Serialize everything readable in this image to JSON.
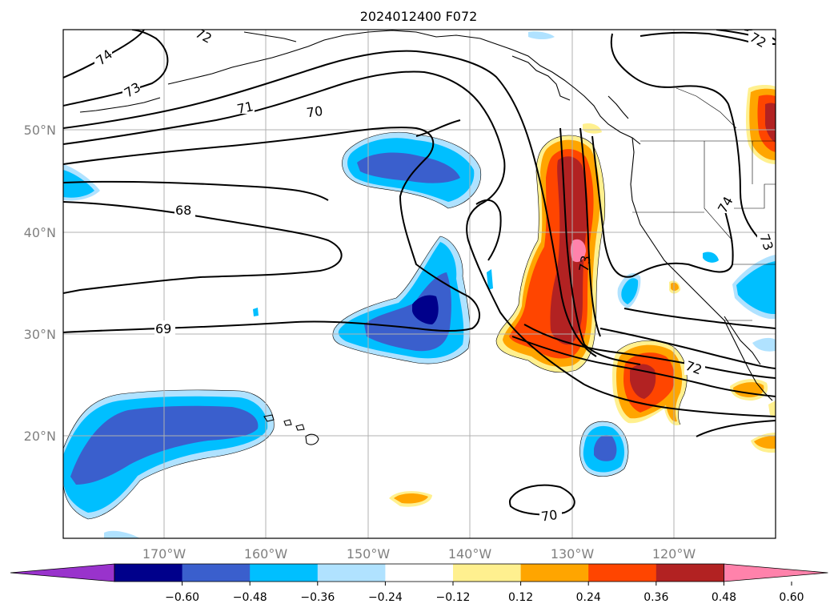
{
  "title": "2024012400 F072",
  "lat_labels": [
    "50°N",
    "40°N",
    "30°N",
    "20°N"
  ],
  "lon_labels": [
    "170°W",
    "160°W",
    "150°W",
    "140°W",
    "130°W",
    "120°W"
  ],
  "colorbar": {
    "colors": [
      "#9933cc",
      "#00008b",
      "#3a5fcd",
      "#00bfff",
      "#b0e2ff",
      "#ffffff",
      "#fff08f",
      "#ffa500",
      "#ff4500",
      "#b22222",
      "#ff82ab"
    ],
    "tick_labels": [
      "−0.60",
      "−0.48",
      "−0.36",
      "−0.24",
      "−0.12",
      "0.12",
      "0.24",
      "0.36",
      "0.48",
      "0.60"
    ]
  },
  "contour_labels": [
    {
      "text": "74",
      "id": "74-nw"
    },
    {
      "text": "72",
      "id": "72-n"
    },
    {
      "text": "73",
      "id": "73-nw"
    },
    {
      "text": "71",
      "id": "71"
    },
    {
      "text": "70",
      "id": "70-n"
    },
    {
      "text": "68",
      "id": "68"
    },
    {
      "text": "69",
      "id": "69"
    },
    {
      "text": "73",
      "id": "73-c"
    },
    {
      "text": "74",
      "id": "74-e"
    },
    {
      "text": "73",
      "id": "73-e"
    },
    {
      "text": "72",
      "id": "72-s"
    },
    {
      "text": "70",
      "id": "70-s"
    },
    {
      "text": "72",
      "id": "72-ne"
    }
  ]
}
